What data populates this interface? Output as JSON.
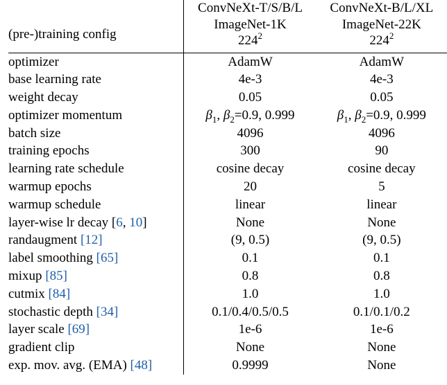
{
  "header": {
    "row_label": "(pre-)training config",
    "columns": [
      {
        "models": "ConvNeXt-T/S/B/L",
        "dataset": "ImageNet-1K",
        "resolution": "224",
        "resolution_exp": "2"
      },
      {
        "models": "ConvNeXt-B/L/XL",
        "dataset": "ImageNet-22K",
        "resolution": "224",
        "resolution_exp": "2"
      }
    ]
  },
  "rows": [
    {
      "label": "optimizer",
      "ref": "",
      "a": "AdamW",
      "b": "AdamW"
    },
    {
      "label": "base learning rate",
      "ref": "",
      "a": "4e-3",
      "b": "4e-3"
    },
    {
      "label": "weight decay",
      "ref": "",
      "a": "0.05",
      "b": "0.05"
    },
    {
      "label": "optimizer momentum",
      "ref": "",
      "a": "=0.9, 0.999",
      "b": "=0.9, 0.999"
    },
    {
      "label": "batch size",
      "ref": "",
      "a": "4096",
      "b": "4096"
    },
    {
      "label": "training epochs",
      "ref": "",
      "a": "300",
      "b": "90"
    },
    {
      "label": "learning rate schedule",
      "ref": "",
      "a": "cosine decay",
      "b": "cosine decay"
    },
    {
      "label": "warmup epochs",
      "ref": "",
      "a": "20",
      "b": "5"
    },
    {
      "label": "warmup schedule",
      "ref": "",
      "a": "linear",
      "b": "linear"
    },
    {
      "label": "layer-wise lr decay ",
      "ref_open": "[",
      "ref_a": "6",
      "ref_sep": ", ",
      "ref_b": "10",
      "ref_close": "]",
      "a": "None",
      "b": "None"
    },
    {
      "label": "randaugment ",
      "ref": "[12]",
      "a": "(9, 0.5)",
      "b": "(9, 0.5)"
    },
    {
      "label": "label smoothing ",
      "ref": "[65]",
      "a": "0.1",
      "b": "0.1"
    },
    {
      "label": "mixup ",
      "ref": "[85]",
      "a": "0.8",
      "b": "0.8"
    },
    {
      "label": "cutmix ",
      "ref": "[84]",
      "a": "1.0",
      "b": "1.0"
    },
    {
      "label": "stochastic depth ",
      "ref": "[34]",
      "a": "0.1/0.4/0.5/0.5",
      "b": "0.1/0.1/0.2"
    },
    {
      "label": "layer scale ",
      "ref": "[69]",
      "a": "1e-6",
      "b": "1e-6"
    },
    {
      "label": "gradient clip",
      "ref": "",
      "a": "None",
      "b": "None"
    },
    {
      "label": "exp. mov. avg. (EMA) ",
      "ref": "[48]",
      "a": "0.9999",
      "b": "None"
    }
  ],
  "symbols": {
    "beta": "β",
    "sub1": "1",
    "sub2": "2"
  },
  "colors": {
    "text": "#000000",
    "citation": "#1f5fa8",
    "rule": "#000000"
  }
}
